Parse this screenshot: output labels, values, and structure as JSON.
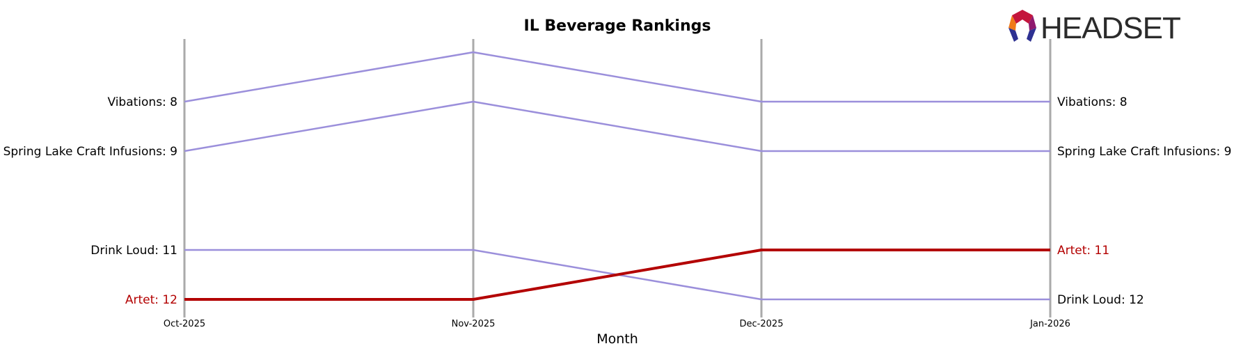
{
  "chart_data": {
    "type": "line",
    "title": "IL Beverage Rankings",
    "xlabel": "Month",
    "ylabel": "",
    "x": [
      "Oct-2025",
      "Nov-2025",
      "Dec-2025",
      "Jan-2026"
    ],
    "y_inverted": true,
    "ylim": [
      6.75,
      12.25
    ],
    "grid": false,
    "series": [
      {
        "name": "Vibations",
        "values": [
          8,
          7,
          8,
          8
        ],
        "color": "#9b8fdb",
        "highlight": false
      },
      {
        "name": "Spring Lake Craft Infusions",
        "values": [
          9,
          8,
          9,
          9
        ],
        "color": "#9b8fdb",
        "highlight": false
      },
      {
        "name": "Drink Loud",
        "values": [
          11,
          11,
          12,
          12
        ],
        "color": "#9b8fdb",
        "highlight": false
      },
      {
        "name": "Artet",
        "values": [
          12,
          12,
          11,
          11
        ],
        "color": "#b30000",
        "highlight": true
      }
    ],
    "start_labels": [
      {
        "series": "Vibations",
        "text": "Vibations: 8"
      },
      {
        "series": "Spring Lake Craft Infusions",
        "text": "Spring Lake Craft Infusions: 9"
      },
      {
        "series": "Drink Loud",
        "text": "Drink Loud: 11"
      },
      {
        "series": "Artet",
        "text": "Artet: 12"
      }
    ],
    "end_labels": [
      {
        "series": "Vibations",
        "text": "Vibations: 8"
      },
      {
        "series": "Spring Lake Craft Infusions",
        "text": "Spring Lake Craft Infusions: 9"
      },
      {
        "series": "Artet",
        "text": "Artet: 11"
      },
      {
        "series": "Drink Loud",
        "text": "Drink Loud: 12"
      }
    ]
  },
  "logo": {
    "text": "HEADSET",
    "icon": "headset-logo-icon"
  },
  "colors": {
    "axis_line": "#aaaaaa",
    "highlight": "#b30000",
    "default_line": "#9b8fdb",
    "label_default": "#000000"
  }
}
